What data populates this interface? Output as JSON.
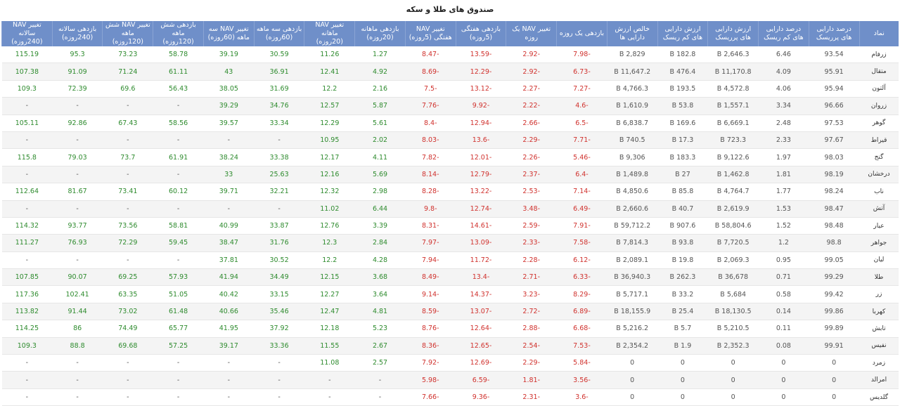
{
  "title": "صندوق های طلا و سکه",
  "table": {
    "header": [
      "نماد",
      "درصد دارایی های پرریسک",
      "درصد دارایی های کم ریسک",
      "ارزش دارایی های پرریسک",
      "ارزش دارایی های کم ریسک",
      "خالص ارزش دارایی ها",
      "بازدهی یک روزه",
      "تغییر NAV یک روزه",
      "بازدهی هفتگی (5روزه)",
      "تغییر NAV هفتگی (5روزه)",
      "بازدهی ماهانه (20روزه)",
      "تغییر NAV ماهانه (20روزه)",
      "بازدهی سه ماهه (60روزه)",
      "تغییر NAV سه ماهه (60روزه)",
      "بازدهی شش ماهه (120روزه)",
      "تغییر NAV شش ماهه (120روزه)",
      "بازدهی سالانه (240روزه)",
      "تغییر NAV سالانه (240روزه)"
    ],
    "rows": [
      [
        "زرفام",
        "93.54",
        "6.46",
        "2,646.3 B",
        "182.8 B",
        "2,829 B",
        "-7.98",
        "-2.92",
        "-13.59",
        "-8.47",
        "1.27",
        "11.26",
        "30.59",
        "39.19",
        "58.78",
        "73.23",
        "95.3",
        "115.19"
      ],
      [
        "متقال",
        "95.91",
        "4.09",
        "11,170.8 B",
        "476.4 B",
        "11,647.2 B",
        "-6.73",
        "-2.92",
        "-12.29",
        "-8.69",
        "4.92",
        "12.41",
        "36.91",
        "43",
        "61.11",
        "71.24",
        "91.09",
        "107.38"
      ],
      [
        "آلتون",
        "95.94",
        "4.06",
        "4,572.8 B",
        "193.5 B",
        "4,766.3 B",
        "-7.27",
        "-2.27",
        "-13.12",
        "-7.5",
        "2.16",
        "12.2",
        "31.69",
        "38.05",
        "56.43",
        "69.6",
        "72.39",
        "109.3"
      ],
      [
        "زروان",
        "96.66",
        "3.34",
        "1,557.1 B",
        "53.8 B",
        "1,610.9 B",
        "-4.6",
        "-2.22",
        "-9.92",
        "-7.76",
        "5.87",
        "12.57",
        "34.76",
        "39.29",
        "-",
        "-",
        "-",
        "-"
      ],
      [
        "گوهر",
        "97.53",
        "2.48",
        "6,669.1 B",
        "169.6 B",
        "6,838.7 B",
        "-6.5",
        "-2.66",
        "-12.94",
        "-8.4",
        "5.61",
        "12.29",
        "33.34",
        "39.57",
        "58.56",
        "67.43",
        "92.86",
        "105.11"
      ],
      [
        "قیراط",
        "97.67",
        "2.33",
        "723.3 B",
        "17.3 B",
        "740.5 B",
        "-7.71",
        "-2.29",
        "-13.6",
        "-8.03",
        "2.02",
        "10.95",
        "-",
        "-",
        "-",
        "-",
        "-",
        "-"
      ],
      [
        "گنج",
        "98.03",
        "1.97",
        "9,122.6 B",
        "183.3 B",
        "9,306 B",
        "-5.46",
        "-2.26",
        "-12.01",
        "-7.82",
        "4.11",
        "12.17",
        "33.38",
        "38.24",
        "61.91",
        "73.7",
        "79.03",
        "115.8"
      ],
      [
        "درخشان",
        "98.19",
        "1.81",
        "1,462.8 B",
        "27 B",
        "1,489.8 B",
        "-6.4",
        "-2.37",
        "-12.79",
        "-8.14",
        "5.69",
        "12.16",
        "25.63",
        "33",
        "-",
        "-",
        "-",
        "-"
      ],
      [
        "ناب",
        "98.24",
        "1.77",
        "4,764.7 B",
        "85.8 B",
        "4,850.6 B",
        "-7.14",
        "-2.53",
        "-13.22",
        "-8.28",
        "2.98",
        "12.32",
        "32.21",
        "39.71",
        "60.12",
        "73.41",
        "81.67",
        "112.64"
      ],
      [
        "آتش",
        "98.47",
        "1.53",
        "2,619.9 B",
        "40.7 B",
        "2,660.6 B",
        "-6.49",
        "-3.48",
        "-12.74",
        "-9.8",
        "6.44",
        "11.02",
        "-",
        "-",
        "-",
        "-",
        "-",
        "-"
      ],
      [
        "عیار",
        "98.48",
        "1.52",
        "58,804.6 B",
        "907.6 B",
        "59,712.2 B",
        "-7.91",
        "-2.59",
        "-14.61",
        "-8.31",
        "3.39",
        "12.76",
        "33.87",
        "40.99",
        "58.81",
        "73.56",
        "93.77",
        "114.32"
      ],
      [
        "جواهر",
        "98.8",
        "1.2",
        "7,720.5 B",
        "93.8 B",
        "7,814.3 B",
        "-7.58",
        "-2.33",
        "-13.09",
        "-7.97",
        "2.84",
        "12.3",
        "31.76",
        "38.47",
        "59.45",
        "72.29",
        "76.93",
        "111.27"
      ],
      [
        "لیان",
        "99.05",
        "0.95",
        "2,069.3 B",
        "19.8 B",
        "2,089.1 B",
        "-6.12",
        "-2.28",
        "-11.72",
        "-7.94",
        "4.28",
        "12.2",
        "30.52",
        "37.81",
        "-",
        "-",
        "-",
        "-"
      ],
      [
        "طلا",
        "99.29",
        "0.71",
        "36,678 B",
        "262.3 B",
        "36,940.3 B",
        "-6.33",
        "-2.71",
        "-13.4",
        "-8.49",
        "3.68",
        "12.15",
        "34.49",
        "41.94",
        "57.93",
        "69.25",
        "90.07",
        "107.85"
      ],
      [
        "زر",
        "99.42",
        "0.58",
        "5,684 B",
        "33.2 B",
        "5,717.1 B",
        "-8.29",
        "-3.23",
        "-14.37",
        "-9.14",
        "3.64",
        "12.27",
        "33.15",
        "40.42",
        "51.05",
        "63.35",
        "102.41",
        "117.36"
      ],
      [
        "کهربا",
        "99.86",
        "0.14",
        "18,130.5 B",
        "25.4 B",
        "18,155.9 B",
        "-6.89",
        "-2.72",
        "-13.07",
        "-8.59",
        "4.81",
        "12.47",
        "35.46",
        "40.66",
        "61.48",
        "73.02",
        "91.44",
        "113.82"
      ],
      [
        "تابش",
        "99.89",
        "0.11",
        "5,210.5 B",
        "5.7 B",
        "5,216.2 B",
        "-6.68",
        "-2.88",
        "-12.64",
        "-8.76",
        "5.23",
        "12.18",
        "37.92",
        "41.95",
        "65.77",
        "74.49",
        "86",
        "114.25"
      ],
      [
        "نفیس",
        "99.91",
        "0.08",
        "2,352.3 B",
        "1.9 B",
        "2,354.2 B",
        "-7.53",
        "-2.54",
        "-12.65",
        "-8.36",
        "2.67",
        "11.55",
        "33.36",
        "39.17",
        "57.25",
        "69.68",
        "88.8",
        "109.3"
      ],
      [
        "زمرد",
        "0",
        "0",
        "0",
        "0",
        "0",
        "-5.84",
        "-2.29",
        "-12.69",
        "-7.92",
        "2.57",
        "11.08",
        "-",
        "-",
        "-",
        "-",
        "-",
        "-"
      ],
      [
        "امرالد",
        "0",
        "0",
        "0",
        "0",
        "0",
        "-3.56",
        "-1.81",
        "-6.59",
        "-5.98",
        "-",
        "-",
        "-",
        "-",
        "-",
        "-",
        "-",
        "-"
      ],
      [
        "گلدیس",
        "0",
        "0",
        "0",
        "0",
        "0",
        "-3.6",
        "-2.31",
        "-9.36",
        "-7.66",
        "-",
        "-",
        "-",
        "-",
        "-",
        "-",
        "-",
        "-"
      ]
    ]
  }
}
